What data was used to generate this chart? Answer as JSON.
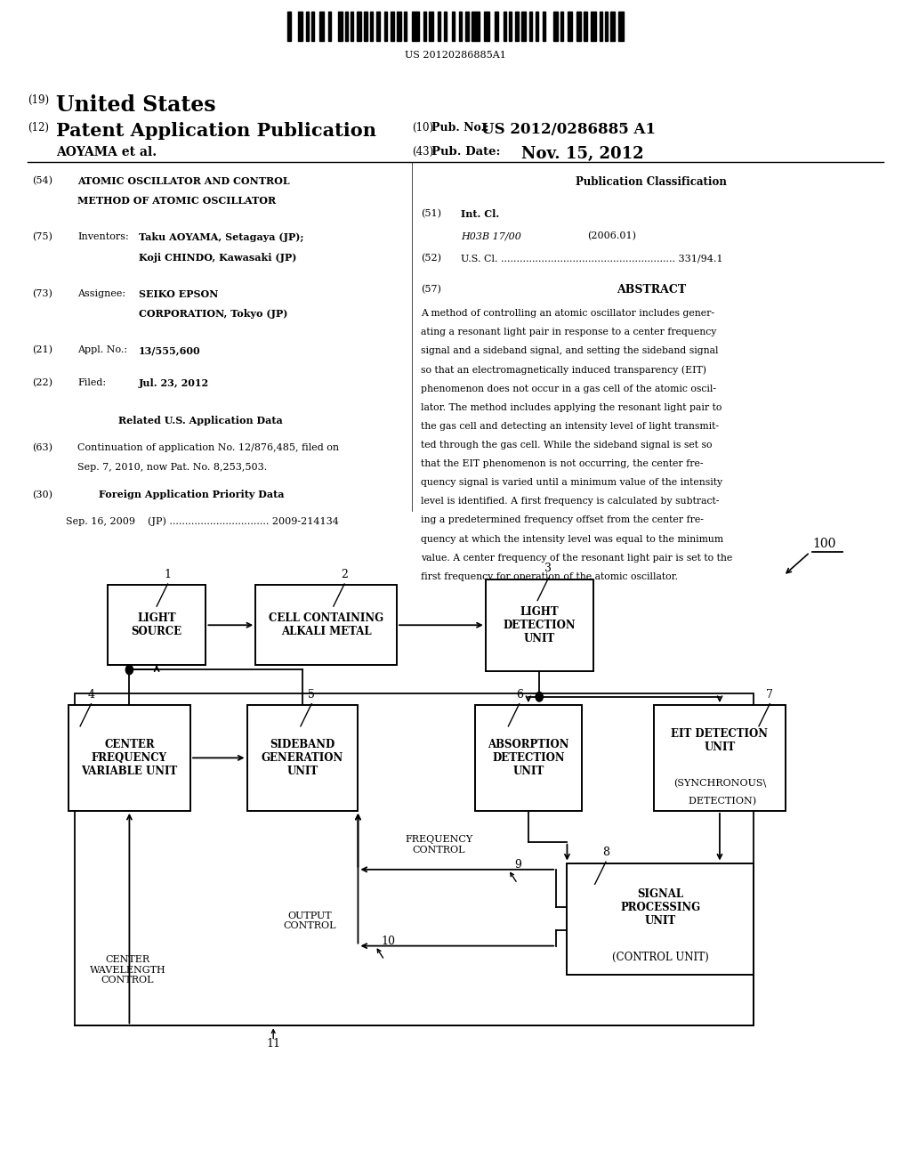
{
  "bg_color": "#ffffff",
  "barcode_text": "US 20120286885A1",
  "header": {
    "tag19": "(19)",
    "united_states": "United States",
    "tag12": "(12)",
    "pat_app_pub": "Patent Application Publication",
    "tag10": "(10)",
    "pub_no_label": "Pub. No.:",
    "pub_no_value": "US 2012/0286885 A1",
    "inventors_line": "AOYAMA et al.",
    "tag43": "(43)",
    "pub_date_label": "Pub. Date:",
    "pub_date_value": "Nov. 15, 2012"
  },
  "left_col": {
    "tag54": "(54)",
    "title_line1": "ATOMIC OSCILLATOR AND CONTROL",
    "title_line2": "METHOD OF ATOMIC OSCILLATOR",
    "tag75": "(75)",
    "inventors_label": "Inventors:",
    "inventors_val1": "Taku AOYAMA, Setagaya (JP);",
    "inventors_val2": "Koji CHINDO, Kawasaki (JP)",
    "tag73": "(73)",
    "assignee_label": "Assignee:",
    "assignee_val1": "SEIKO EPSON",
    "assignee_val2": "CORPORATION, Tokyo (JP)",
    "tag21": "(21)",
    "appl_label": "Appl. No.:",
    "appl_val": "13/555,600",
    "tag22": "(22)",
    "filed_label": "Filed:",
    "filed_val": "Jul. 23, 2012",
    "related_header": "Related U.S. Application Data",
    "tag63": "(63)",
    "cont_line1": "Continuation of application No. 12/876,485, filed on",
    "cont_line2": "Sep. 7, 2010, now Pat. No. 8,253,503.",
    "tag30": "(30)",
    "foreign_header": "Foreign Application Priority Data",
    "foreign_val": "Sep. 16, 2009    (JP) ................................ 2009-214134"
  },
  "right_col": {
    "pub_class_header": "Publication Classification",
    "tag51": "(51)",
    "int_cl_label": "Int. Cl.",
    "int_cl_val": "H03B 17/00",
    "int_cl_year": "(2006.01)",
    "tag52": "(52)",
    "us_cl_label": "U.S. Cl. ........................................................ 331/94.1",
    "tag57": "(57)",
    "abstract_header": "ABSTRACT",
    "abstract_lines": [
      "A method of controlling an atomic oscillator includes gener-",
      "ating a resonant light pair in response to a center frequency",
      "signal and a sideband signal, and setting the sideband signal",
      "so that an electromagnetically induced transparency (EIT)",
      "phenomenon does not occur in a gas cell of the atomic oscil-",
      "lator. The method includes applying the resonant light pair to",
      "the gas cell and detecting an intensity level of light transmit-",
      "ted through the gas cell. While the sideband signal is set so",
      "that the EIT phenomenon is not occurring, the center fre-",
      "quency signal is varied until a minimum value of the intensity",
      "level is identified. A first frequency is calculated by subtract-",
      "ing a predetermined frequency offset from the center fre-",
      "quency at which the intensity level was equal to the minimum",
      "value. A center frequency of the resonant light pair is set to the",
      "first frequency for operation of the atomic oscillator."
    ]
  },
  "eit_line1": "(SYNCHRONOUS",
  "eit_line2": "  DETECTION)"
}
